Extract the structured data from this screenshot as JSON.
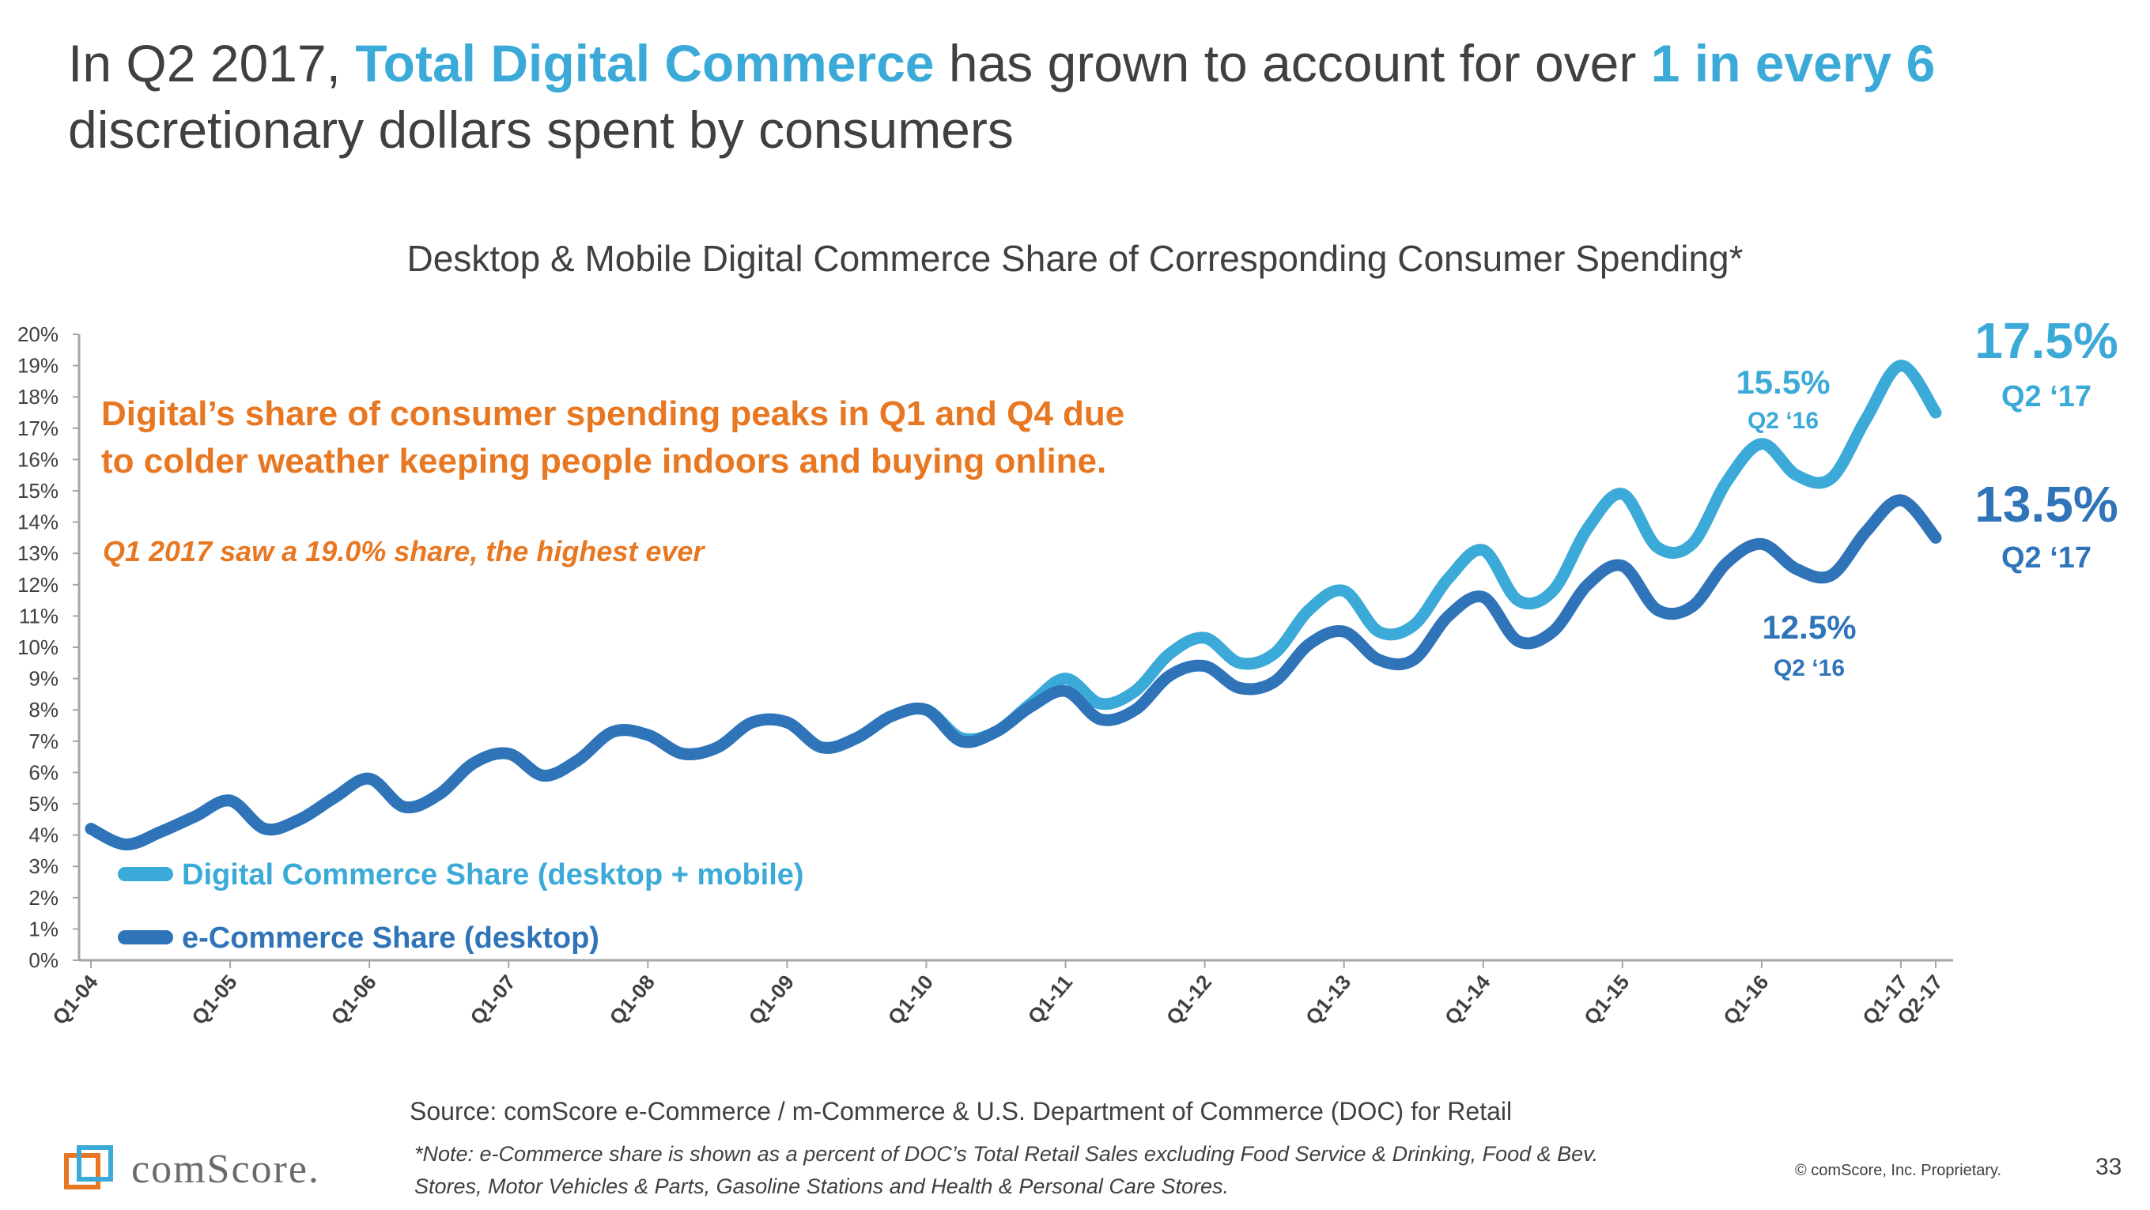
{
  "headline": {
    "part1": "In Q2 2017, ",
    "highlight1": "Total Digital Commerce",
    "part2": " has grown to account for over ",
    "highlight2": "1 in every 6",
    "part3": "discretionary dollars spent by consumers"
  },
  "colors": {
    "digital": "#3BAAD8",
    "ecommerce": "#2F74B8",
    "annotation": "#E87722",
    "text": "#404040",
    "axis": "#A6A6A6"
  },
  "chart_data": {
    "type": "line",
    "title": "Desktop & Mobile Digital Commerce Share of Corresponding Consumer Spending*",
    "ylim": [
      0,
      20
    ],
    "y_ticks": [
      "0%",
      "1%",
      "2%",
      "3%",
      "4%",
      "5%",
      "6%",
      "7%",
      "8%",
      "9%",
      "10%",
      "11%",
      "12%",
      "13%",
      "14%",
      "15%",
      "16%",
      "17%",
      "18%",
      "19%",
      "20%"
    ],
    "x_tick_labels": [
      "Q1-04",
      "Q1-05",
      "Q1-06",
      "Q1-07",
      "Q1-08",
      "Q1-09",
      "Q1-10",
      "Q1-11",
      "Q1-12",
      "Q1-13",
      "Q1-14",
      "Q1-15",
      "Q1-16",
      "Q1-17",
      "Q2-17"
    ],
    "x": [
      "Q1-04",
      "Q2-04",
      "Q3-04",
      "Q4-04",
      "Q1-05",
      "Q2-05",
      "Q3-05",
      "Q4-05",
      "Q1-06",
      "Q2-06",
      "Q3-06",
      "Q4-06",
      "Q1-07",
      "Q2-07",
      "Q3-07",
      "Q4-07",
      "Q1-08",
      "Q2-08",
      "Q3-08",
      "Q4-08",
      "Q1-09",
      "Q2-09",
      "Q3-09",
      "Q4-09",
      "Q1-10",
      "Q2-10",
      "Q3-10",
      "Q4-10",
      "Q1-11",
      "Q2-11",
      "Q3-11",
      "Q4-11",
      "Q1-12",
      "Q2-12",
      "Q3-12",
      "Q4-12",
      "Q1-13",
      "Q2-13",
      "Q3-13",
      "Q4-13",
      "Q1-14",
      "Q2-14",
      "Q3-14",
      "Q4-14",
      "Q1-15",
      "Q2-15",
      "Q3-15",
      "Q4-15",
      "Q1-16",
      "Q2-16",
      "Q3-16",
      "Q4-16",
      "Q1-17",
      "Q2-17"
    ],
    "series": [
      {
        "name": "Digital Commerce Share (desktop + mobile)",
        "values": [
          4.2,
          3.7,
          4.1,
          4.6,
          5.1,
          4.2,
          4.5,
          5.2,
          5.8,
          4.9,
          5.3,
          6.3,
          6.6,
          5.9,
          6.4,
          7.3,
          7.2,
          6.6,
          6.8,
          7.6,
          7.6,
          6.8,
          7.1,
          7.8,
          8.0,
          7.1,
          7.3,
          8.2,
          9.0,
          8.2,
          8.6,
          9.8,
          10.3,
          9.5,
          9.8,
          11.2,
          11.8,
          10.5,
          10.7,
          12.2,
          13.1,
          11.5,
          11.8,
          13.8,
          14.9,
          13.2,
          13.3,
          15.3,
          16.5,
          15.5,
          15.4,
          17.3,
          19.0,
          17.5
        ]
      },
      {
        "name": "e-Commerce Share (desktop)",
        "values": [
          4.2,
          3.7,
          4.1,
          4.6,
          5.1,
          4.2,
          4.5,
          5.2,
          5.8,
          4.9,
          5.3,
          6.3,
          6.6,
          5.9,
          6.4,
          7.3,
          7.2,
          6.6,
          6.8,
          7.6,
          7.6,
          6.8,
          7.1,
          7.8,
          8.0,
          7.0,
          7.3,
          8.1,
          8.6,
          7.7,
          8.0,
          9.1,
          9.4,
          8.7,
          8.9,
          10.1,
          10.5,
          9.6,
          9.6,
          11.0,
          11.6,
          10.2,
          10.5,
          12.0,
          12.6,
          11.2,
          11.3,
          12.7,
          13.3,
          12.5,
          12.3,
          13.7,
          14.7,
          13.5
        ]
      }
    ],
    "legend_position": "bottom-left",
    "grid": false
  },
  "annotations": {
    "peak_line1": "Digital’s share of consumer spending peaks in Q1 and Q4 due",
    "peak_line2": "to colder weather keeping people indoors and buying online.",
    "peak_sub": "Q1 2017 saw a 19.0% share, the highest ever",
    "digital_q2_16_value": "15.5%",
    "digital_q2_16_label": "Q2 ‘16",
    "ecom_q2_16_value": "12.5%",
    "ecom_q2_16_label": "Q2 ‘16",
    "digital_q2_17_value": "17.5%",
    "digital_q2_17_label": "Q2 ‘17",
    "ecom_q2_17_value": "13.5%",
    "ecom_q2_17_label": "Q2 ‘17"
  },
  "footer": {
    "source": "Source: comScore e-Commerce / m-Commerce & U.S. Department of Commerce (DOC) for Retail",
    "note": "*Note: e-Commerce share is shown as a percent of DOC’s Total Retail Sales excluding Food Service & Drinking, Food & Bev. Stores,  Motor Vehicles & Parts, Gasoline Stations and Health & Personal Care Stores.",
    "logo_text": "comScore.",
    "copyright": "© comScore, Inc. Proprietary.",
    "page_number": "33"
  }
}
